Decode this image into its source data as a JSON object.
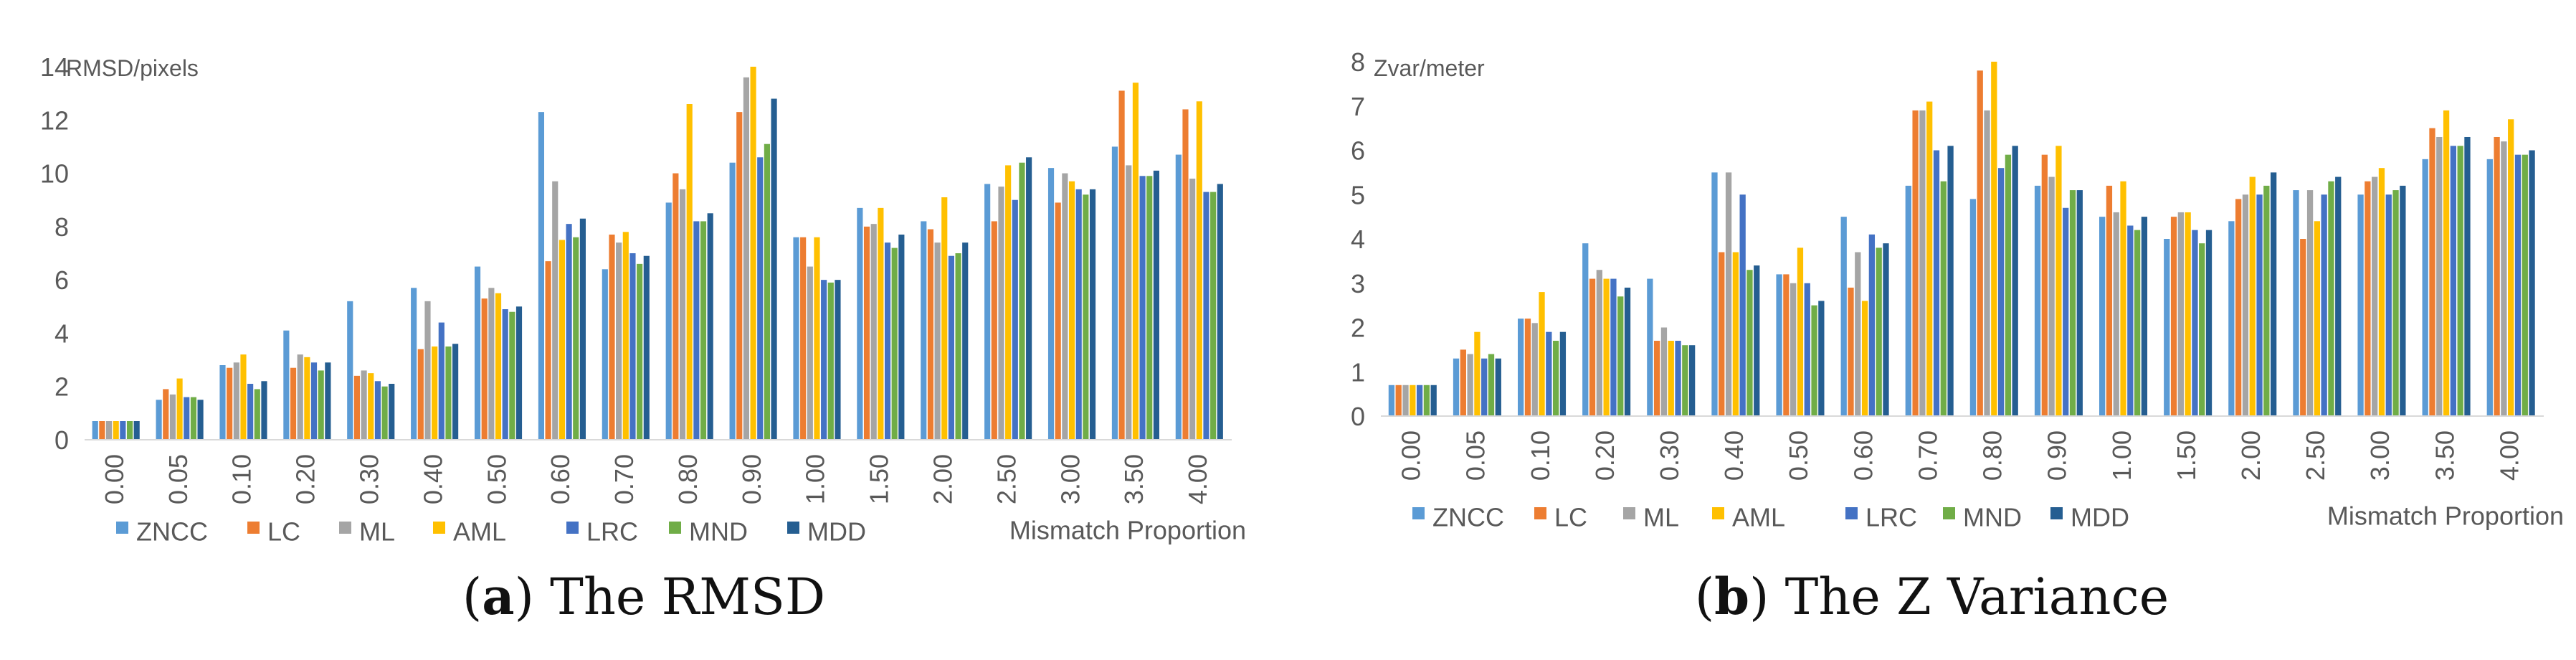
{
  "panels": [
    {
      "letter": "a",
      "caption": "The RMSD"
    },
    {
      "letter": "b",
      "caption": "The Z Variance"
    }
  ],
  "colors": {
    "ZNCC": "#5b9bd5",
    "LC": "#ed7d31",
    "ML": "#a5a5a5",
    "AML": "#ffc000",
    "LRC": "#4472c4",
    "MND": "#70ad47",
    "MDD": "#255e91"
  },
  "chart_data": [
    {
      "type": "bar",
      "title": "",
      "ylabel": "RMSD/pixels",
      "xlabel": "Mismatch Proportion",
      "ylim": [
        0,
        14
      ],
      "yticks": [
        0,
        2,
        4,
        6,
        8,
        10,
        12,
        14
      ],
      "grid": false,
      "legend": "bottom",
      "categories": [
        "0.00",
        "0.05",
        "0.10",
        "0.20",
        "0.30",
        "0.40",
        "0.50",
        "0.60",
        "0.70",
        "0.80",
        "0.90",
        "1.00",
        "1.50",
        "2.00",
        "2.50",
        "3.00",
        "3.50",
        "4.00"
      ],
      "series": [
        {
          "name": "ZNCC",
          "values": [
            0.7,
            1.5,
            2.8,
            4.1,
            5.2,
            5.7,
            6.5,
            12.3,
            6.4,
            8.9,
            10.4,
            7.6,
            8.7,
            8.2,
            9.6,
            10.2,
            11.0,
            10.7
          ]
        },
        {
          "name": "LC",
          "values": [
            0.7,
            1.9,
            2.7,
            2.7,
            2.4,
            3.4,
            5.3,
            6.7,
            7.7,
            10.0,
            12.3,
            7.6,
            8.0,
            7.9,
            8.2,
            8.9,
            13.1,
            12.4
          ]
        },
        {
          "name": "ML",
          "values": [
            0.7,
            1.7,
            2.9,
            3.2,
            2.6,
            5.2,
            5.7,
            9.7,
            7.4,
            9.4,
            13.6,
            6.5,
            8.1,
            7.4,
            9.5,
            10.0,
            10.3,
            9.8
          ]
        },
        {
          "name": "AML",
          "values": [
            0.7,
            2.3,
            3.2,
            3.1,
            2.5,
            3.5,
            5.5,
            7.5,
            7.8,
            12.6,
            14.0,
            7.6,
            8.7,
            9.1,
            10.3,
            9.7,
            13.4,
            12.7
          ]
        },
        {
          "name": "LRC",
          "values": [
            0.7,
            1.6,
            2.1,
            2.9,
            2.2,
            4.4,
            4.9,
            8.1,
            7.0,
            8.2,
            10.6,
            6.0,
            7.4,
            6.9,
            9.0,
            9.4,
            9.9,
            9.3
          ]
        },
        {
          "name": "MND",
          "values": [
            0.7,
            1.6,
            1.9,
            2.6,
            2.0,
            3.5,
            4.8,
            7.6,
            6.6,
            8.2,
            11.1,
            5.9,
            7.2,
            7.0,
            10.4,
            9.2,
            9.9,
            9.3
          ]
        },
        {
          "name": "MDD",
          "values": [
            0.7,
            1.5,
            2.2,
            2.9,
            2.1,
            3.6,
            5.0,
            8.3,
            6.9,
            8.5,
            12.8,
            6.0,
            7.7,
            7.4,
            10.6,
            9.4,
            10.1,
            9.6
          ]
        }
      ]
    },
    {
      "type": "bar",
      "title": "",
      "ylabel": "Zvar/meter",
      "xlabel": "Mismatch Proportion",
      "ylim": [
        0,
        8
      ],
      "yticks": [
        0,
        1,
        2,
        3,
        4,
        5,
        6,
        7,
        8
      ],
      "grid": false,
      "legend": "bottom",
      "categories": [
        "0.00",
        "0.05",
        "0.10",
        "0.20",
        "0.30",
        "0.40",
        "0.50",
        "0.60",
        "0.70",
        "0.80",
        "0.90",
        "1.00",
        "1.50",
        "2.00",
        "2.50",
        "3.00",
        "3.50",
        "4.00"
      ],
      "series": [
        {
          "name": "ZNCC",
          "values": [
            0.7,
            1.3,
            2.2,
            3.9,
            3.1,
            5.5,
            3.2,
            4.5,
            5.2,
            4.9,
            5.2,
            4.5,
            4.0,
            4.4,
            5.1,
            5.0,
            5.8,
            5.8
          ]
        },
        {
          "name": "LC",
          "values": [
            0.7,
            1.5,
            2.2,
            3.1,
            1.7,
            3.7,
            3.2,
            2.9,
            6.9,
            7.8,
            5.9,
            5.2,
            4.5,
            4.9,
            4.0,
            5.3,
            6.5,
            6.3
          ]
        },
        {
          "name": "ML",
          "values": [
            0.7,
            1.4,
            2.1,
            3.3,
            2.0,
            5.5,
            3.0,
            3.7,
            6.9,
            6.9,
            5.4,
            4.6,
            4.6,
            5.0,
            5.1,
            5.4,
            6.3,
            6.2
          ]
        },
        {
          "name": "AML",
          "values": [
            0.7,
            1.9,
            2.8,
            3.1,
            1.7,
            3.7,
            3.8,
            2.6,
            7.1,
            8.0,
            6.1,
            5.3,
            4.6,
            5.4,
            4.4,
            5.6,
            6.9,
            6.7
          ]
        },
        {
          "name": "LRC",
          "values": [
            0.7,
            1.3,
            1.9,
            3.1,
            1.7,
            5.0,
            3.0,
            4.1,
            6.0,
            5.6,
            4.7,
            4.3,
            4.2,
            5.0,
            5.0,
            5.0,
            6.1,
            5.9
          ]
        },
        {
          "name": "MND",
          "values": [
            0.7,
            1.4,
            1.7,
            2.7,
            1.6,
            3.3,
            2.5,
            3.8,
            5.3,
            5.9,
            5.1,
            4.2,
            3.9,
            5.2,
            5.3,
            5.1,
            6.1,
            5.9
          ]
        },
        {
          "name": "MDD",
          "values": [
            0.7,
            1.3,
            1.9,
            2.9,
            1.6,
            3.4,
            2.6,
            3.9,
            6.1,
            6.1,
            5.1,
            4.5,
            4.2,
            5.5,
            5.4,
            5.2,
            6.3,
            6.0
          ]
        }
      ]
    }
  ]
}
